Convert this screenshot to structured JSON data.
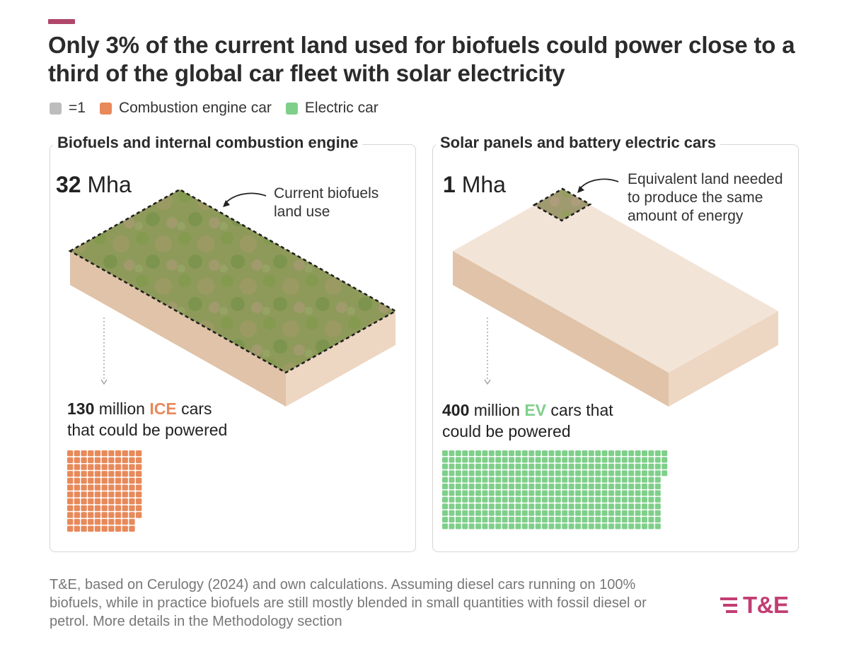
{
  "title": "Only 3% of the current land used for biofuels could power close to a third of the global car fleet with solar electricity",
  "colors": {
    "accent": "#b0476a",
    "unit": "#bdbdbd",
    "ice": "#e8895a",
    "ev": "#7fcf8a",
    "land": "#ead8c8",
    "land_side": "#dcbb9e"
  },
  "legend": [
    {
      "label": "=1",
      "color": "#bdbdbd"
    },
    {
      "label": "Combustion engine car",
      "color": "#e8895a"
    },
    {
      "label": "Electric car",
      "color": "#7fcf8a"
    }
  ],
  "left": {
    "title": "Biofuels and internal combustion engine",
    "area_value": "32",
    "area_unit": "Mha",
    "annotation": [
      "Current biofuels",
      "land use"
    ],
    "cars_number": "130",
    "cars_pre": "million",
    "cars_type": "ICE",
    "cars_post": "cars",
    "cars_line2": "that could be powered"
  },
  "right": {
    "title": "Solar panels and battery electric cars",
    "area_value": "1",
    "area_unit": "Mha",
    "annotation": [
      "Equivalent land needed",
      "to produce the same",
      "amount of energy"
    ],
    "cars_number": "400",
    "cars_pre": "million",
    "cars_type": "EV",
    "cars_post": "cars that",
    "cars_line2": "could be powered"
  },
  "chart_data": {
    "type": "waffle",
    "unit_label": "=1",
    "series": [
      {
        "name": "Combustion engine car",
        "panel": "Biofuels and internal combustion engine",
        "land_mha": 32,
        "cars_million": 130,
        "icons": 130
      },
      {
        "name": "Electric car",
        "panel": "Solar panels and battery electric cars",
        "land_mha": 1,
        "cars_million": 400,
        "icons": 400
      }
    ]
  },
  "footnote": "T&E, based on Cerulogy (2024) and own calculations. Assuming diesel cars running on 100% biofuels, while in practice biofuels are still mostly blended in small quantities with fossil diesel or petrol. More details in the Methodology section",
  "logo": "T&E"
}
